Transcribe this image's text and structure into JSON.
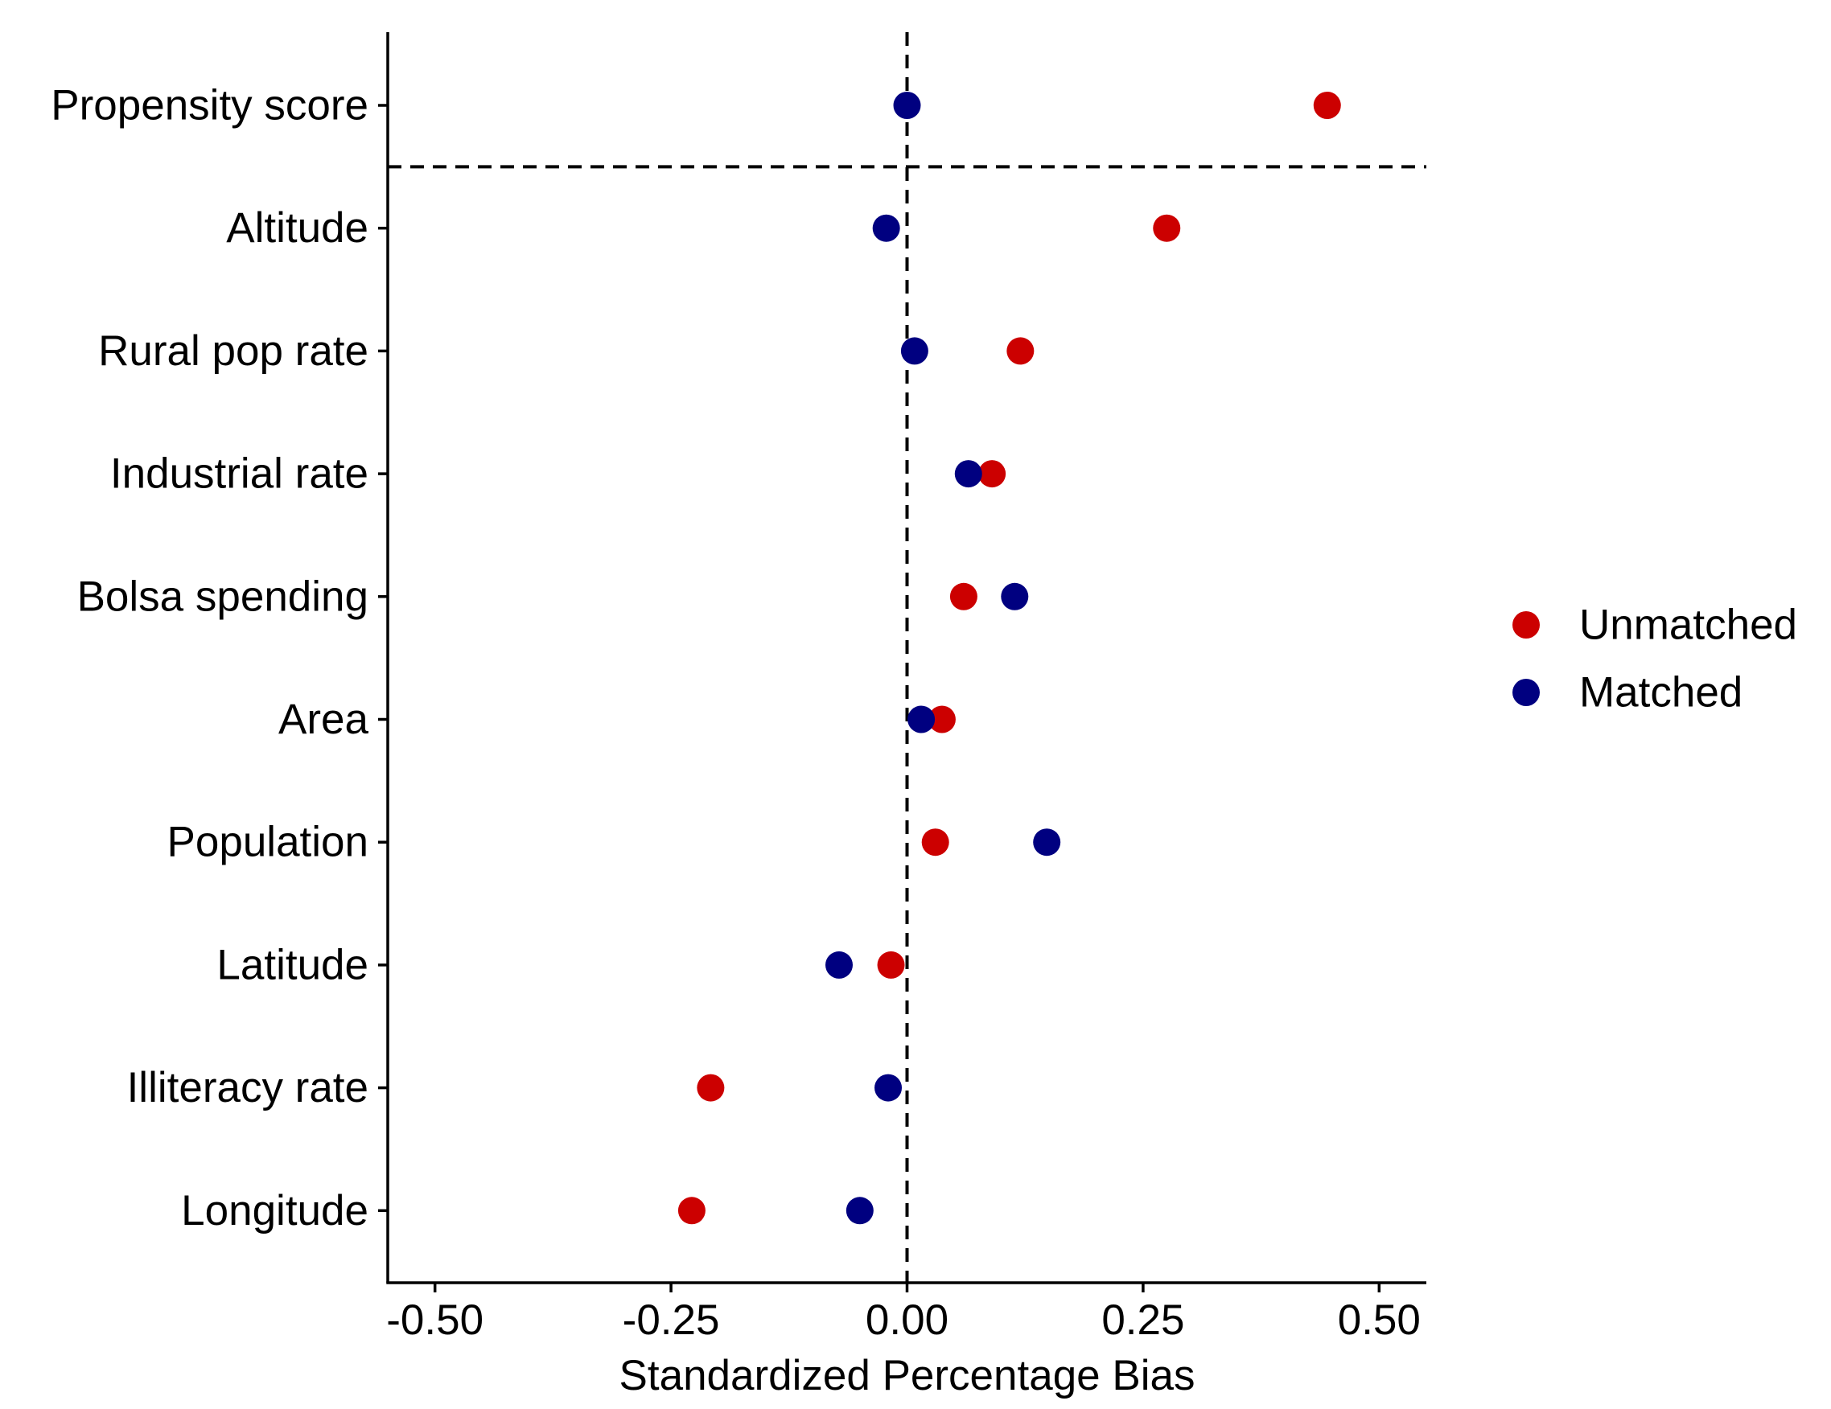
{
  "chart_data": {
    "type": "scatter",
    "title": "",
    "xlabel": "Standardized Percentage Bias",
    "ylabel": "",
    "xlim": [
      -0.55,
      0.55
    ],
    "xticks": [
      -0.5,
      -0.25,
      0.0,
      0.25,
      0.5
    ],
    "xtick_labels": [
      "-0.50",
      "-0.25",
      "0.00",
      "0.25",
      "0.50"
    ],
    "grid": false,
    "legend_position": "right",
    "categories": [
      "Propensity score",
      "Altitude",
      "Rural pop rate",
      "Industrial rate",
      "Bolsa spending",
      "Area",
      "Population",
      "Latitude",
      "Illiteracy rate",
      "Longitude"
    ],
    "reference_lines": [
      {
        "orientation": "vertical",
        "at": 0.0,
        "style": "dashed"
      },
      {
        "orientation": "horizontal",
        "between": [
          "Propensity score",
          "Altitude"
        ],
        "style": "dashed"
      }
    ],
    "series": [
      {
        "name": "Unmatched",
        "color": "#CC0000",
        "values": [
          0.445,
          0.275,
          0.12,
          0.09,
          0.06,
          0.037,
          0.03,
          -0.017,
          -0.208,
          -0.228
        ]
      },
      {
        "name": "Matched",
        "color": "#000080",
        "values": [
          0.0,
          -0.022,
          0.008,
          0.065,
          0.114,
          0.015,
          0.148,
          -0.072,
          -0.02,
          -0.05
        ]
      }
    ]
  }
}
